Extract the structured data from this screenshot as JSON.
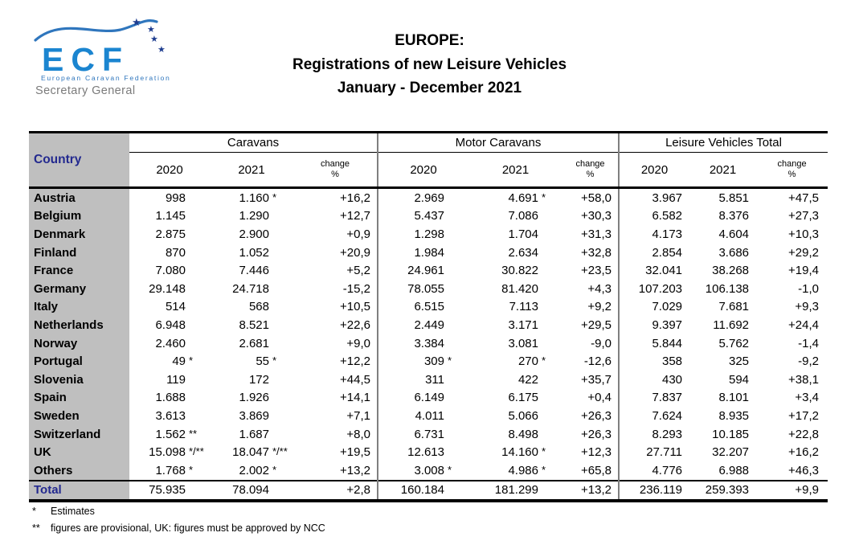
{
  "logo": {
    "acronym": "ECF",
    "subtitle": "European Caravan Federation",
    "role": "Secretary General",
    "colors": {
      "blue": "#1b85d0",
      "swoosh_blue": "#2f76bd",
      "star_blue": "#1e3d8f",
      "role_gray": "#7b7b7b"
    }
  },
  "title": {
    "line1": "EUROPE:",
    "line2": "Registrations of new Leisure Vehicles",
    "line3": "January - December 2021"
  },
  "table": {
    "country_header": "Country",
    "groups": [
      {
        "label": "Caravans"
      },
      {
        "label": "Motor Caravans"
      },
      {
        "label": "Leisure Vehicles Total"
      }
    ],
    "sub": {
      "y2020": "2020",
      "y2021": "2021",
      "change1": "change",
      "change2": "%"
    },
    "colors": {
      "country_column_bg": "#bfbfbf",
      "header_text_blue": "#23298f",
      "divider_gray": "#7f7f7f"
    },
    "rows": [
      {
        "country": "Austria",
        "c2020": "998",
        "c2020n": "",
        "c2021": "1.160",
        "c2021n": "*",
        "cchg": "+16,2",
        "m2020": "2.969",
        "m2020n": "",
        "m2021": "4.691",
        "m2021n": "*",
        "mchg": "+58,0",
        "t2020": "3.967",
        "t2021": "5.851",
        "tchg": "+47,5"
      },
      {
        "country": "Belgium",
        "c2020": "1.145",
        "c2020n": "",
        "c2021": "1.290",
        "c2021n": "",
        "cchg": "+12,7",
        "m2020": "5.437",
        "m2020n": "",
        "m2021": "7.086",
        "m2021n": "",
        "mchg": "+30,3",
        "t2020": "6.582",
        "t2021": "8.376",
        "tchg": "+27,3"
      },
      {
        "country": "Denmark",
        "c2020": "2.875",
        "c2020n": "",
        "c2021": "2.900",
        "c2021n": "",
        "cchg": "+0,9",
        "m2020": "1.298",
        "m2020n": "",
        "m2021": "1.704",
        "m2021n": "",
        "mchg": "+31,3",
        "t2020": "4.173",
        "t2021": "4.604",
        "tchg": "+10,3"
      },
      {
        "country": "Finland",
        "c2020": "870",
        "c2020n": "",
        "c2021": "1.052",
        "c2021n": "",
        "cchg": "+20,9",
        "m2020": "1.984",
        "m2020n": "",
        "m2021": "2.634",
        "m2021n": "",
        "mchg": "+32,8",
        "t2020": "2.854",
        "t2021": "3.686",
        "tchg": "+29,2"
      },
      {
        "country": "France",
        "c2020": "7.080",
        "c2020n": "",
        "c2021": "7.446",
        "c2021n": "",
        "cchg": "+5,2",
        "m2020": "24.961",
        "m2020n": "",
        "m2021": "30.822",
        "m2021n": "",
        "mchg": "+23,5",
        "t2020": "32.041",
        "t2021": "38.268",
        "tchg": "+19,4"
      },
      {
        "country": "Germany",
        "c2020": "29.148",
        "c2020n": "",
        "c2021": "24.718",
        "c2021n": "",
        "cchg": "-15,2",
        "m2020": "78.055",
        "m2020n": "",
        "m2021": "81.420",
        "m2021n": "",
        "mchg": "+4,3",
        "t2020": "107.203",
        "t2021": "106.138",
        "tchg": "-1,0"
      },
      {
        "country": "Italy",
        "c2020": "514",
        "c2020n": "",
        "c2021": "568",
        "c2021n": "",
        "cchg": "+10,5",
        "m2020": "6.515",
        "m2020n": "",
        "m2021": "7.113",
        "m2021n": "",
        "mchg": "+9,2",
        "t2020": "7.029",
        "t2021": "7.681",
        "tchg": "+9,3"
      },
      {
        "country": "Netherlands",
        "c2020": "6.948",
        "c2020n": "",
        "c2021": "8.521",
        "c2021n": "",
        "cchg": "+22,6",
        "m2020": "2.449",
        "m2020n": "",
        "m2021": "3.171",
        "m2021n": "",
        "mchg": "+29,5",
        "t2020": "9.397",
        "t2021": "11.692",
        "tchg": "+24,4"
      },
      {
        "country": "Norway",
        "c2020": "2.460",
        "c2020n": "",
        "c2021": "2.681",
        "c2021n": "",
        "cchg": "+9,0",
        "m2020": "3.384",
        "m2020n": "",
        "m2021": "3.081",
        "m2021n": "",
        "mchg": "-9,0",
        "t2020": "5.844",
        "t2021": "5.762",
        "tchg": "-1,4"
      },
      {
        "country": "Portugal",
        "c2020": "49",
        "c2020n": "*",
        "c2021": "55",
        "c2021n": "*",
        "cchg": "+12,2",
        "m2020": "309",
        "m2020n": "*",
        "m2021": "270",
        "m2021n": "*",
        "mchg": "-12,6",
        "t2020": "358",
        "t2021": "325",
        "tchg": "-9,2"
      },
      {
        "country": "Slovenia",
        "c2020": "119",
        "c2020n": "",
        "c2021": "172",
        "c2021n": "",
        "cchg": "+44,5",
        "m2020": "311",
        "m2020n": "",
        "m2021": "422",
        "m2021n": "",
        "mchg": "+35,7",
        "t2020": "430",
        "t2021": "594",
        "tchg": "+38,1"
      },
      {
        "country": "Spain",
        "c2020": "1.688",
        "c2020n": "",
        "c2021": "1.926",
        "c2021n": "",
        "cchg": "+14,1",
        "m2020": "6.149",
        "m2020n": "",
        "m2021": "6.175",
        "m2021n": "",
        "mchg": "+0,4",
        "t2020": "7.837",
        "t2021": "8.101",
        "tchg": "+3,4"
      },
      {
        "country": "Sweden",
        "c2020": "3.613",
        "c2020n": "",
        "c2021": "3.869",
        "c2021n": "",
        "cchg": "+7,1",
        "m2020": "4.011",
        "m2020n": "",
        "m2021": "5.066",
        "m2021n": "",
        "mchg": "+26,3",
        "t2020": "7.624",
        "t2021": "8.935",
        "tchg": "+17,2"
      },
      {
        "country": "Switzerland",
        "c2020": "1.562",
        "c2020n": "**",
        "c2021": "1.687",
        "c2021n": "",
        "cchg": "+8,0",
        "m2020": "6.731",
        "m2020n": "",
        "m2021": "8.498",
        "m2021n": "",
        "mchg": "+26,3",
        "t2020": "8.293",
        "t2021": "10.185",
        "tchg": "+22,8"
      },
      {
        "country": "UK",
        "c2020": "15.098",
        "c2020n": "*/**",
        "c2021": "18.047",
        "c2021n": "*/**",
        "cchg": "+19,5",
        "m2020": "12.613",
        "m2020n": "",
        "m2021": "14.160",
        "m2021n": "*",
        "mchg": "+12,3",
        "t2020": "27.711",
        "t2021": "32.207",
        "tchg": "+16,2"
      },
      {
        "country": "Others",
        "c2020": "1.768",
        "c2020n": "*",
        "c2021": "2.002",
        "c2021n": "*",
        "cchg": "+13,2",
        "m2020": "3.008",
        "m2020n": "*",
        "m2021": "4.986",
        "m2021n": "*",
        "mchg": "+65,8",
        "t2020": "4.776",
        "t2021": "6.988",
        "tchg": "+46,3"
      }
    ],
    "total": {
      "country": "Total",
      "c2020": "75.935",
      "c2020n": "",
      "c2021": "78.094",
      "c2021n": "",
      "cchg": "+2,8",
      "m2020": "160.184",
      "m2020n": "",
      "m2021": "181.299",
      "m2021n": "",
      "mchg": "+13,2",
      "t2020": "236.119",
      "t2021": "259.393",
      "tchg": "+9,9"
    }
  },
  "footnotes": [
    {
      "marker": "*",
      "text": "Estimates"
    },
    {
      "marker": "**",
      "text": "figures are provisional, UK: figures must be approved by NCC"
    }
  ]
}
